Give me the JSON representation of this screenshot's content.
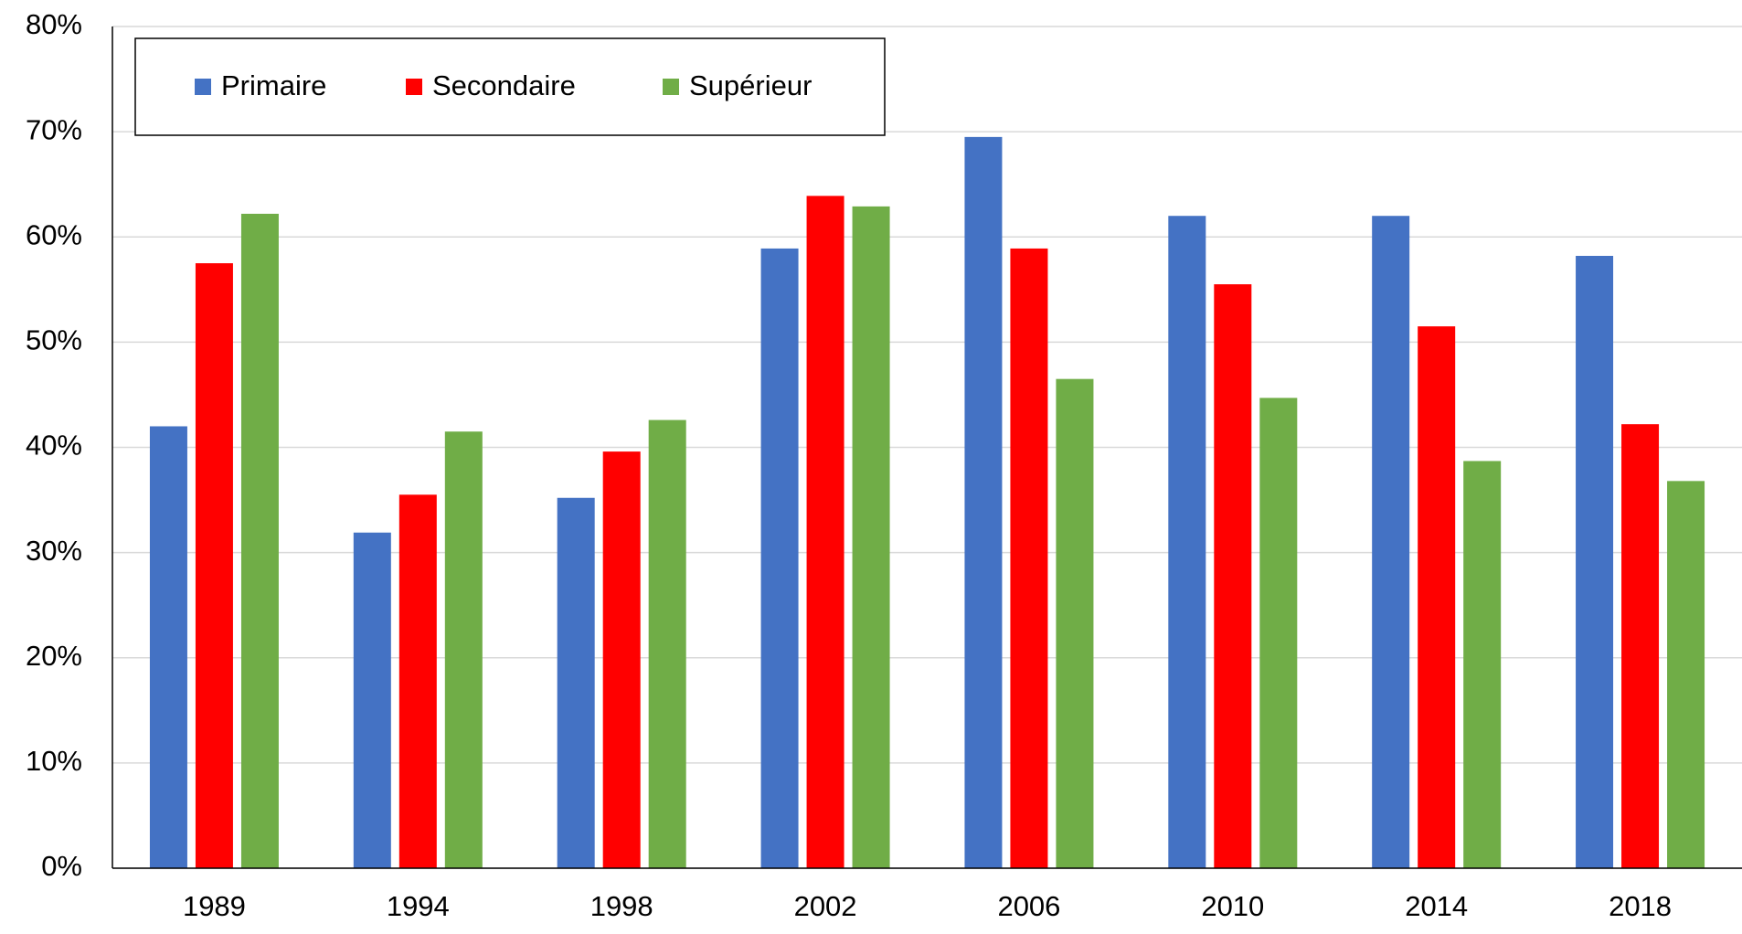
{
  "chart_data": {
    "type": "bar",
    "categories": [
      "1989",
      "1994",
      "1998",
      "2002",
      "2006",
      "2010",
      "2014",
      "2018"
    ],
    "series": [
      {
        "name": "Primaire",
        "color": "#4472c4",
        "values": [
          42,
          31.9,
          35.2,
          58.9,
          69.5,
          62,
          62,
          58.2
        ]
      },
      {
        "name": "Secondaire",
        "color": "#ff0000",
        "values": [
          57.5,
          35.5,
          39.6,
          63.9,
          58.9,
          55.5,
          51.5,
          42.2
        ]
      },
      {
        "name": "Supérieur",
        "color": "#70ad47",
        "values": [
          62.2,
          41.5,
          42.6,
          62.9,
          46.5,
          44.7,
          38.7,
          36.8
        ]
      }
    ],
    "ylim": [
      0,
      80
    ],
    "yticks": [
      {
        "value": 0,
        "label": "0%"
      },
      {
        "value": 10,
        "label": "10%"
      },
      {
        "value": 20,
        "label": "20%"
      },
      {
        "value": 30,
        "label": "30%"
      },
      {
        "value": 40,
        "label": "40%"
      },
      {
        "value": 50,
        "label": "50%"
      },
      {
        "value": 60,
        "label": "60%"
      },
      {
        "value": 70,
        "label": "70%"
      },
      {
        "value": 80,
        "label": "80%"
      }
    ],
    "grid": true,
    "legend": "top-left"
  }
}
